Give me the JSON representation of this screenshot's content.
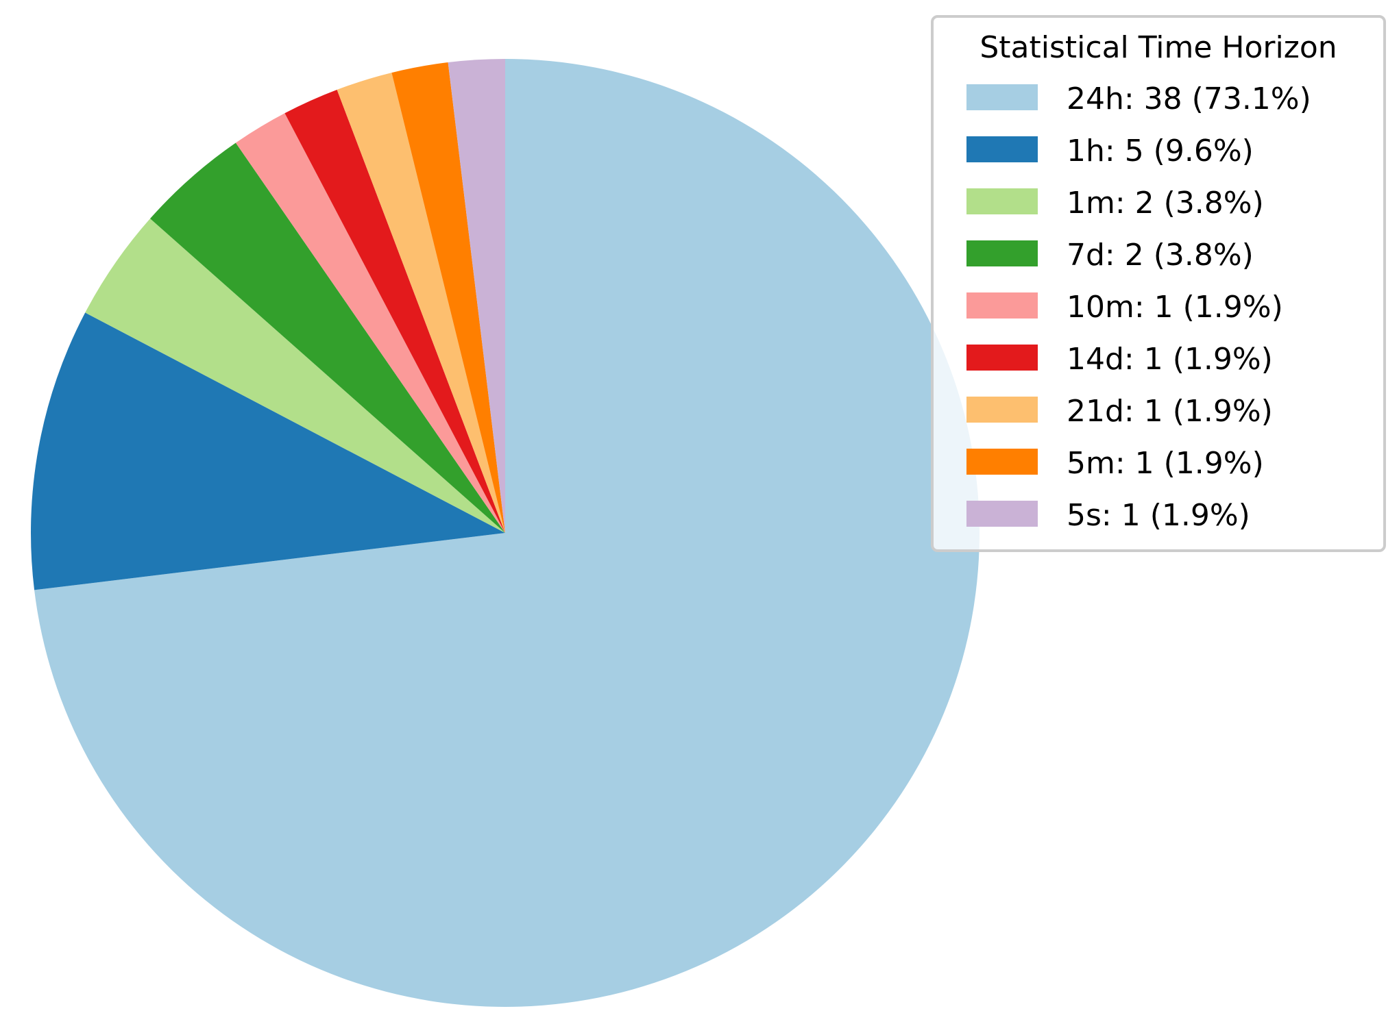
{
  "chart_data": {
    "type": "pie",
    "legend_title": "Statistical Time Horizon",
    "legend_placement": "top-right",
    "start_angle_deg": 90,
    "direction": "clockwise",
    "slices": [
      {
        "label": "24h",
        "value": 38,
        "percent": "73.1%",
        "legend": "24h: 38 (73.1%)",
        "color": "#a6cee3"
      },
      {
        "label": "1h",
        "value": 5,
        "percent": "9.6%",
        "legend": "1h: 5 (9.6%)",
        "color": "#1f78b4"
      },
      {
        "label": "1m",
        "value": 2,
        "percent": "3.8%",
        "legend": "1m: 2 (3.8%)",
        "color": "#b2df8a"
      },
      {
        "label": "7d",
        "value": 2,
        "percent": "3.8%",
        "legend": "7d: 2 (3.8%)",
        "color": "#33a02c"
      },
      {
        "label": "10m",
        "value": 1,
        "percent": "1.9%",
        "legend": "10m: 1 (1.9%)",
        "color": "#fb9a99"
      },
      {
        "label": "14d",
        "value": 1,
        "percent": "1.9%",
        "legend": "14d: 1 (1.9%)",
        "color": "#e31a1c"
      },
      {
        "label": "21d",
        "value": 1,
        "percent": "1.9%",
        "legend": "21d: 1 (1.9%)",
        "color": "#fdbf6f"
      },
      {
        "label": "5m",
        "value": 1,
        "percent": "1.9%",
        "legend": "5m: 1 (1.9%)",
        "color": "#ff7f00"
      },
      {
        "label": "5s",
        "value": 1,
        "percent": "1.9%",
        "legend": "5s: 1 (1.9%)",
        "color": "#cab2d6"
      }
    ]
  }
}
